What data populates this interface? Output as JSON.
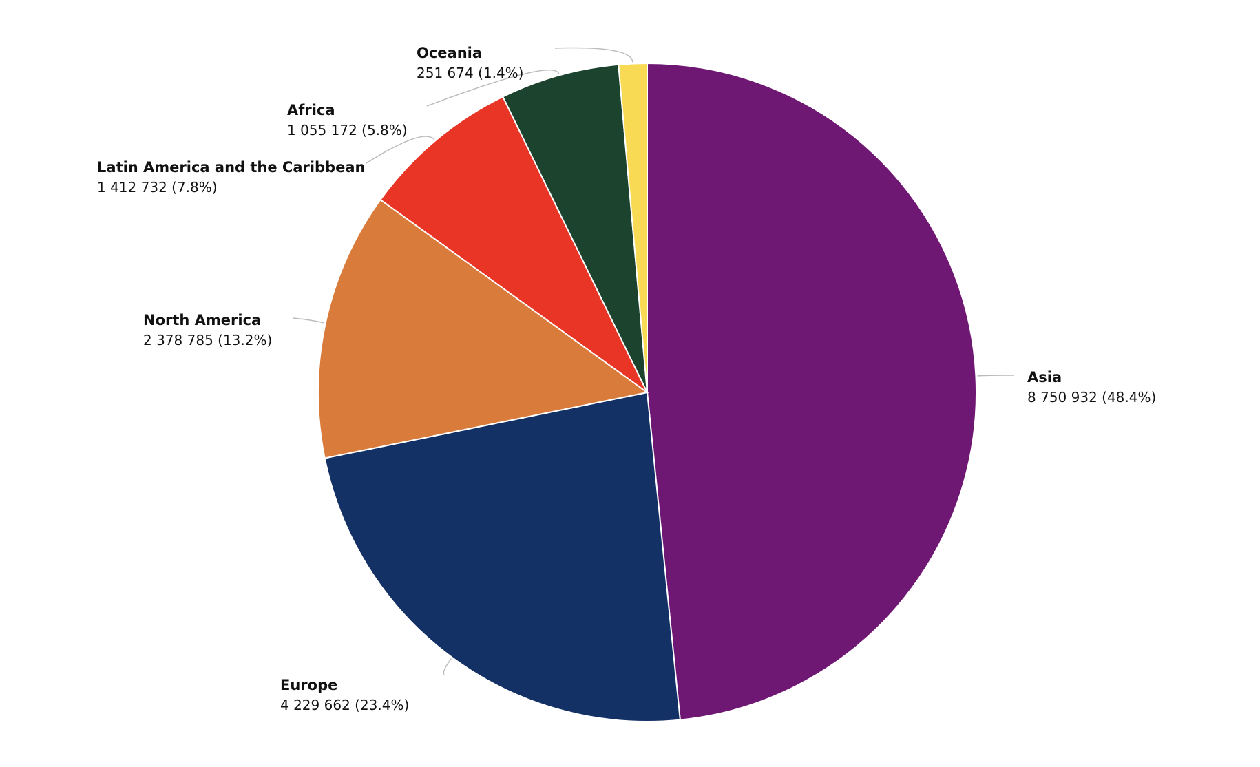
{
  "chart_data": {
    "type": "pie",
    "start_angle_deg": 0,
    "direction": "clockwise",
    "slices": [
      {
        "name": "Asia",
        "value": 8750932,
        "label": "8 750 932 (48.4%)",
        "color": "#6f1873",
        "label_side": "right"
      },
      {
        "name": "Europe",
        "value": 4229662,
        "label": "4 229 662 (23.4%)",
        "color": "#143166",
        "label_side": "left"
      },
      {
        "name": "North America",
        "value": 2378785,
        "label": "2 378 785 (13.2%)",
        "color": "#d97b3a",
        "label_side": "left"
      },
      {
        "name": "Latin America and the Caribbean",
        "value": 1412732,
        "label": "1 412 732 (7.8%)",
        "color": "#e83525",
        "label_side": "left"
      },
      {
        "name": "Africa",
        "value": 1055172,
        "label": "1 055 172 (5.8%)",
        "color": "#1c432d",
        "label_side": "left"
      },
      {
        "name": "Oceania",
        "value": 251674,
        "label": "251 674 (1.4%)",
        "color": "#f8da55",
        "label_side": "left"
      }
    ]
  }
}
